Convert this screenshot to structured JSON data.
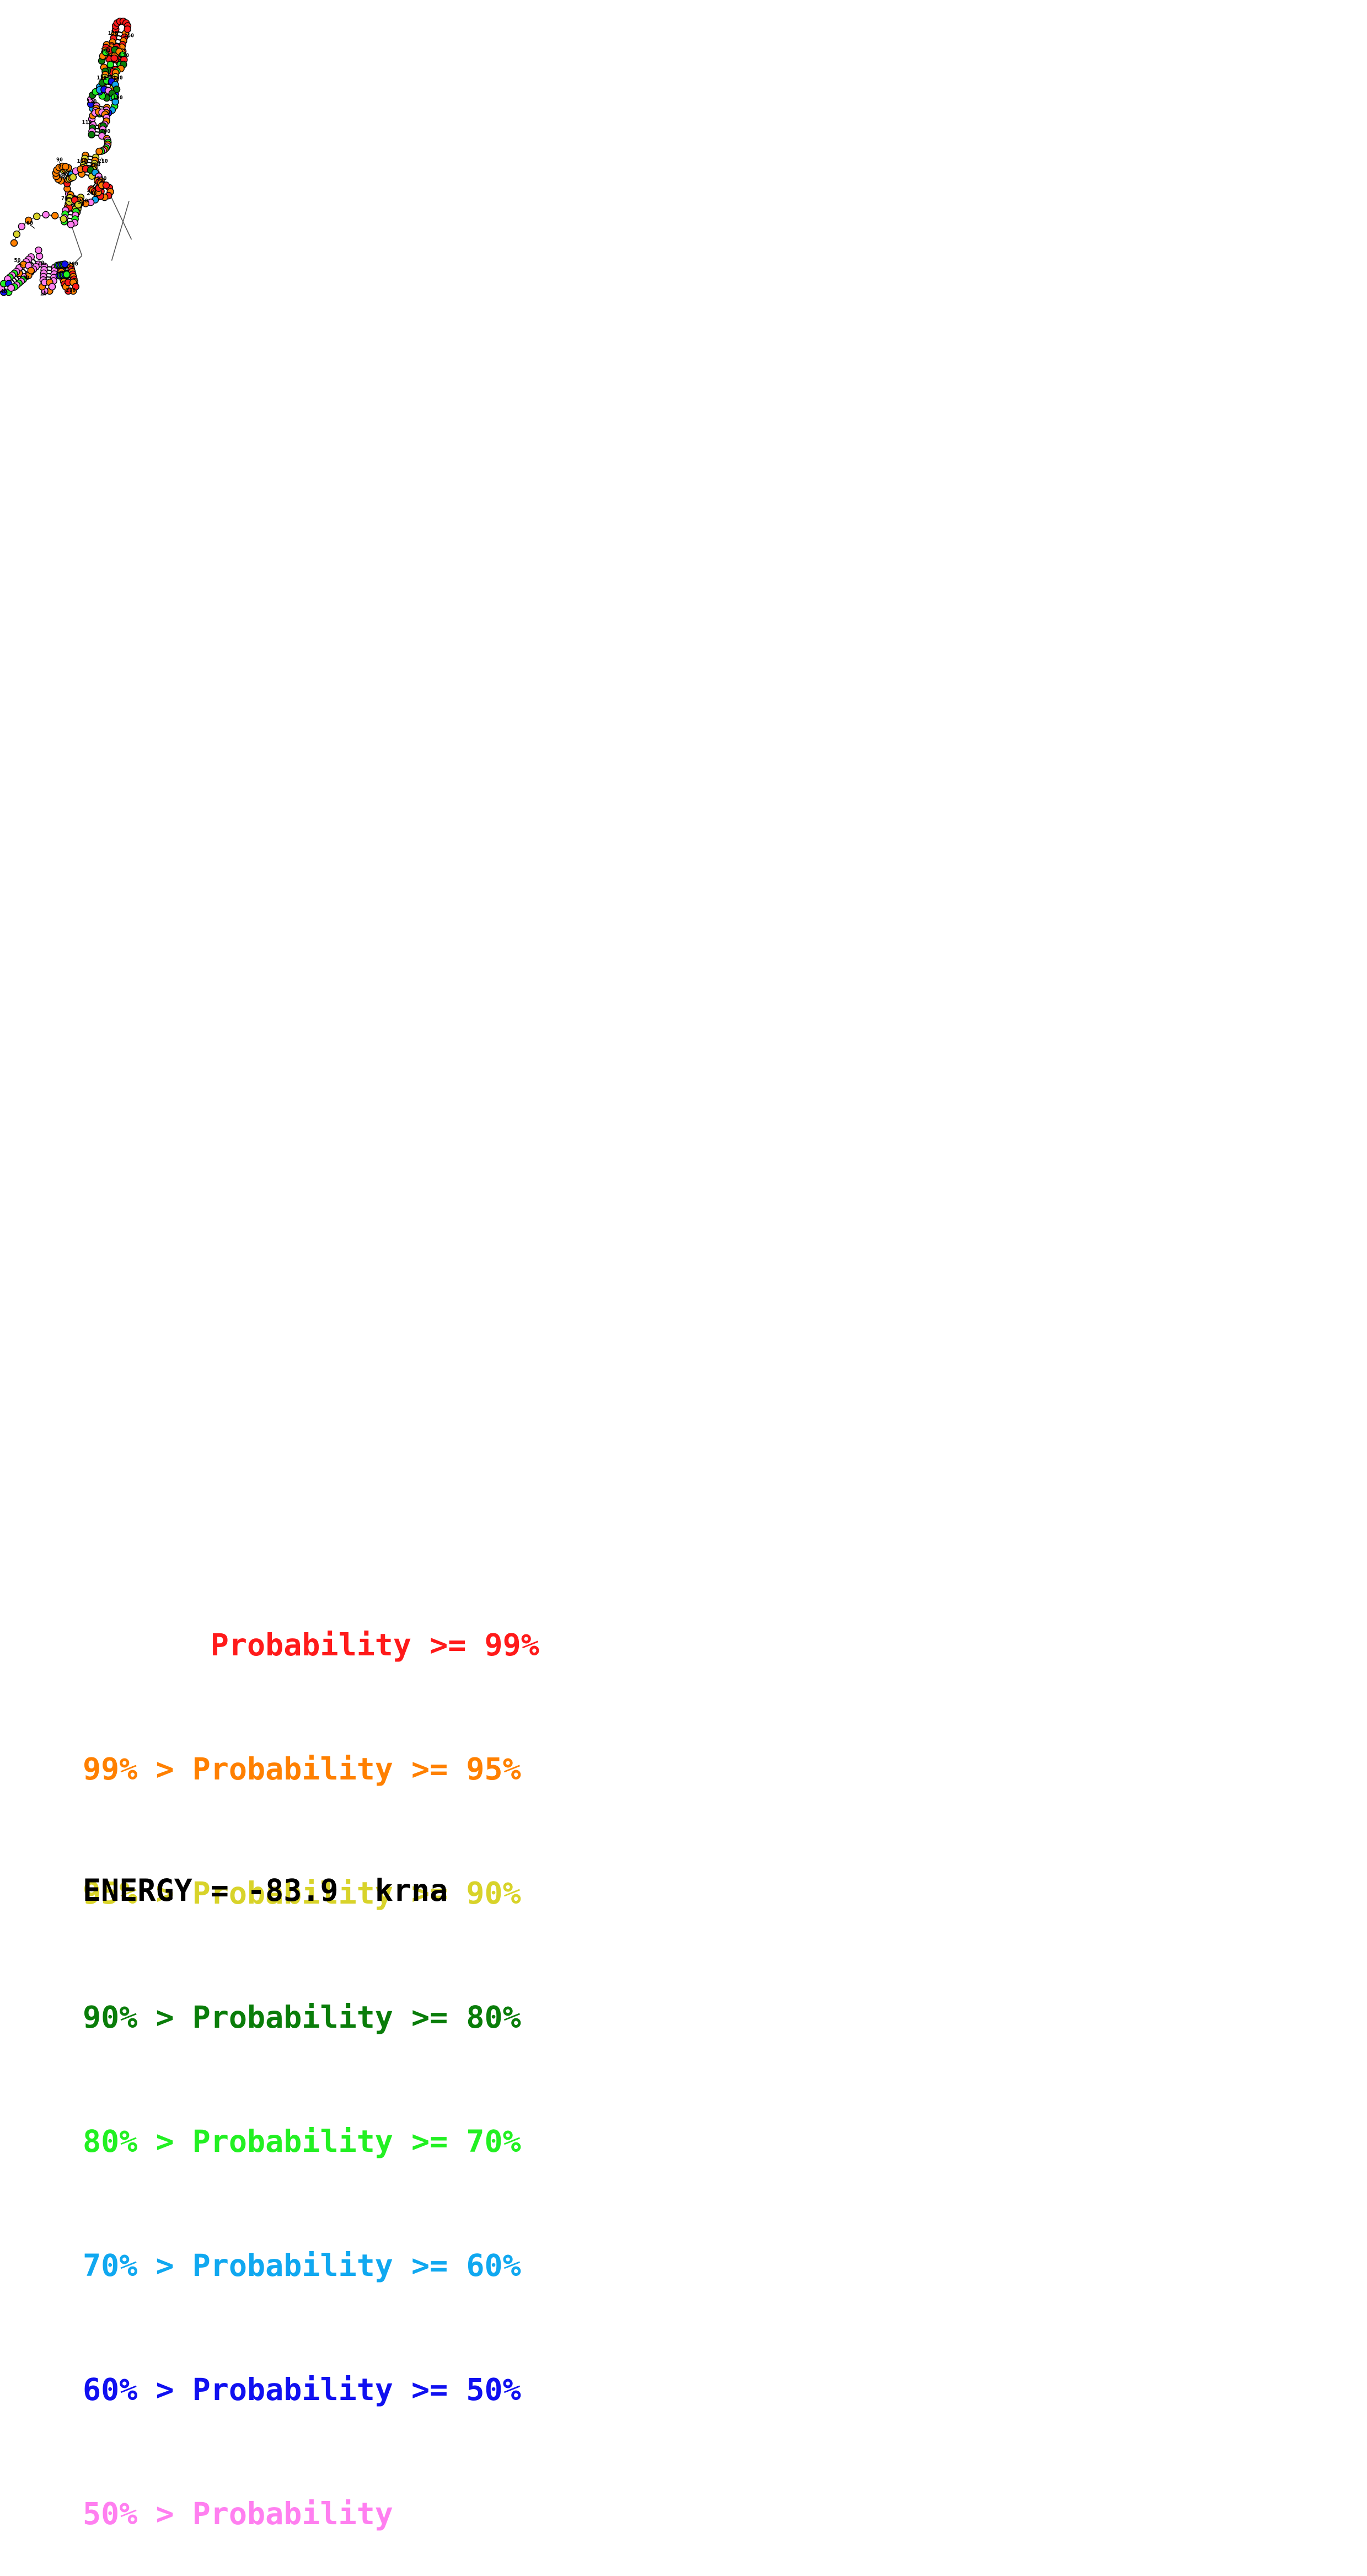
{
  "diagram": {
    "position_labels": [
      "10",
      "20",
      "30",
      "40",
      "50",
      "60",
      "70",
      "80",
      "90",
      "100",
      "110",
      "120",
      "130",
      "140",
      "150",
      "160",
      "170",
      "180",
      "190",
      "200",
      "210",
      "220",
      "230",
      "240",
      "250",
      "260",
      "270"
    ],
    "colors": {
      "red": "#ff1a1a",
      "orange": "#ff8000",
      "yellow": "#d8d32a",
      "darkgreen": "#0a7d0a",
      "green": "#22f022",
      "cyan": "#10a8f0",
      "blue": "#1010f0",
      "pink": "#ff7ff0"
    }
  },
  "legend": [
    {
      "text": "       Probability >= 99%",
      "color": "#ff1a1a"
    },
    {
      "text": "99% > Probability >= 95%",
      "color": "#ff8000"
    },
    {
      "text": "95% > Probability >= 90%",
      "color": "#d8d32a"
    },
    {
      "text": "90% > Probability >= 80%",
      "color": "#0a7d0a"
    },
    {
      "text": "80% > Probability >= 70%",
      "color": "#22f022"
    },
    {
      "text": "70% > Probability >= 60%",
      "color": "#10a8f0"
    },
    {
      "text": "60% > Probability >= 50%",
      "color": "#1010f0"
    },
    {
      "text": "50% > Probability",
      "color": "#ff7ff0"
    }
  ],
  "energy": "ENERGY = -83.9  krna"
}
